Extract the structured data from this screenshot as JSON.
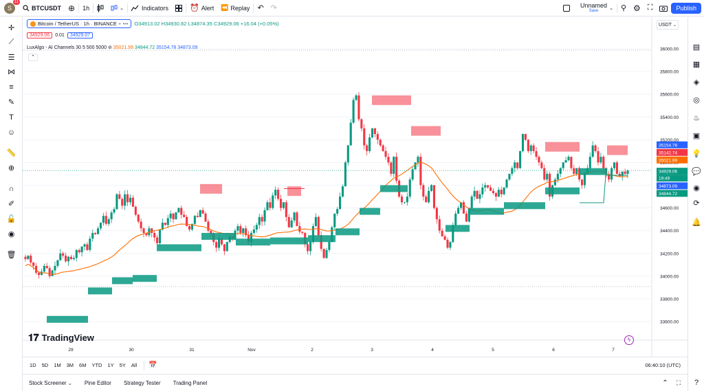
{
  "topbar": {
    "avatar_letter": "S",
    "notif_count": "11",
    "symbol": "BTCUSDT",
    "interval": "1h",
    "indicators_label": "Indicators",
    "alert_label": "Alert",
    "replay_label": "Replay",
    "layout_name": "Unnamed",
    "layout_status": "Save",
    "publish_label": "Publish"
  },
  "legend": {
    "title": "Bitcoin / TetherUS · 1h · BINANCE",
    "ohlc": "O34913.02  H34930.82  L34874.35  C34929.06  +16.04 (+0.05%)",
    "bid": "34929.06",
    "spread": "0.01",
    "ask": "34929.07",
    "indicator_name": "LuxAlgo - AI Channels 30 5 500 5000",
    "indicator_vals": [
      "35021.99",
      "34844.72",
      "35154.78",
      "34873.09"
    ]
  },
  "currency": "USDT",
  "price_axis": [
    "36000.00",
    "35800.00",
    "35600.00",
    "35400.00",
    "35200.00",
    "35000.00",
    "34800.00",
    "34600.00",
    "34400.00",
    "34200.00",
    "34000.00",
    "33800.00",
    "33600.00"
  ],
  "price_tags": [
    {
      "text": "35154.78",
      "color": "#2962ff"
    },
    {
      "text": "35142.74",
      "color": "#f23645"
    },
    {
      "text": "35021.99",
      "color": "#ff6d00"
    },
    {
      "text": "34929.06",
      "color": "#089981"
    },
    {
      "text": "19:49",
      "color": "#089981"
    },
    {
      "text": "34873.09",
      "color": "#2962ff"
    },
    {
      "text": "34844.72",
      "color": "#089981"
    }
  ],
  "time_axis": [
    "29",
    "30",
    "31",
    "Nov",
    "2",
    "3",
    "4",
    "5",
    "6",
    "7"
  ],
  "ranges": [
    "1D",
    "5D",
    "1M",
    "3M",
    "6M",
    "YTD",
    "1Y",
    "5Y",
    "All"
  ],
  "clock": "06:40:10 (UTC)",
  "panels": [
    "Stock Screener",
    "Pine Editor",
    "Strategy Tester",
    "Trading Panel"
  ],
  "brand": "TradingView",
  "colors": {
    "up": "#089981",
    "down": "#f23645",
    "orange": "#ff6d00",
    "accent": "#2962ff"
  },
  "chart_data": {
    "type": "candlestick",
    "ylim": [
      33500,
      36100
    ],
    "closes": [
      34150,
      34180,
      34120,
      34090,
      34030,
      34010,
      34040,
      34090,
      34070,
      34000,
      34050,
      34090,
      34140,
      34200,
      34180,
      34130,
      34170,
      34150,
      34160,
      34230,
      34210,
      34260,
      34280,
      34230,
      34330,
      34380,
      34370,
      34420,
      34470,
      34530,
      34460,
      34500,
      34560,
      34590,
      34720,
      34680,
      34620,
      34720,
      34650,
      34690,
      34610,
      34540,
      34480,
      34420,
      34380,
      34360,
      34420,
      34380,
      34340,
      34290,
      34410,
      34470,
      34450,
      34510,
      34550,
      34500,
      34560,
      34600,
      34540,
      34520,
      34440,
      34410,
      34460,
      34530,
      34520,
      34580,
      34550,
      34480,
      34400,
      34370,
      34300,
      34250,
      34330,
      34280,
      34220,
      34300,
      34350,
      34330,
      34400,
      34440,
      34380,
      34420,
      34360,
      34300,
      34380,
      34410,
      34450,
      34520,
      34480,
      34580,
      34650,
      34600,
      34710,
      34760,
      34680,
      34600,
      34650,
      34520,
      34430,
      34490,
      34560,
      34440,
      34390,
      34380,
      34280,
      34220,
      34300,
      34440,
      34520,
      34360,
      34240,
      34160,
      34230,
      34300,
      34430,
      34550,
      34590,
      34700,
      34790,
      35000,
      35150,
      35350,
      35550,
      35590,
      35380,
      35300,
      35150,
      35100,
      35220,
      35300,
      35250,
      35200,
      35150,
      35100,
      35050,
      35000,
      34900,
      35050,
      34840,
      34700,
      34650,
      34650,
      34700,
      34850,
      34940,
      35000,
      35050,
      34800,
      34700,
      34650,
      34750,
      34800,
      34600,
      34500,
      34400,
      34350,
      34320,
      34250,
      34300,
      34450,
      34550,
      34600,
      34650,
      34550,
      34480,
      34600,
      34700,
      34750,
      34680,
      34720,
      34780,
      34800,
      34780,
      34750,
      34730,
      34700,
      34760,
      34720,
      34780,
      34850,
      34900,
      34950,
      35000,
      34950,
      35100,
      35250,
      35200,
      35100,
      35150,
      35100,
      35050,
      35000,
      34950,
      34850,
      34900,
      34700,
      34800,
      34850,
      34900,
      34950,
      35000,
      35020,
      35050,
      34950,
      34900,
      34950,
      34850,
      34800,
      34900,
      34950,
      35050,
      35150,
      35100,
      35000,
      35050,
      34950,
      34900,
      34850,
      34950,
      35000,
      34900,
      34880,
      34920,
      34900,
      34929
    ]
  }
}
